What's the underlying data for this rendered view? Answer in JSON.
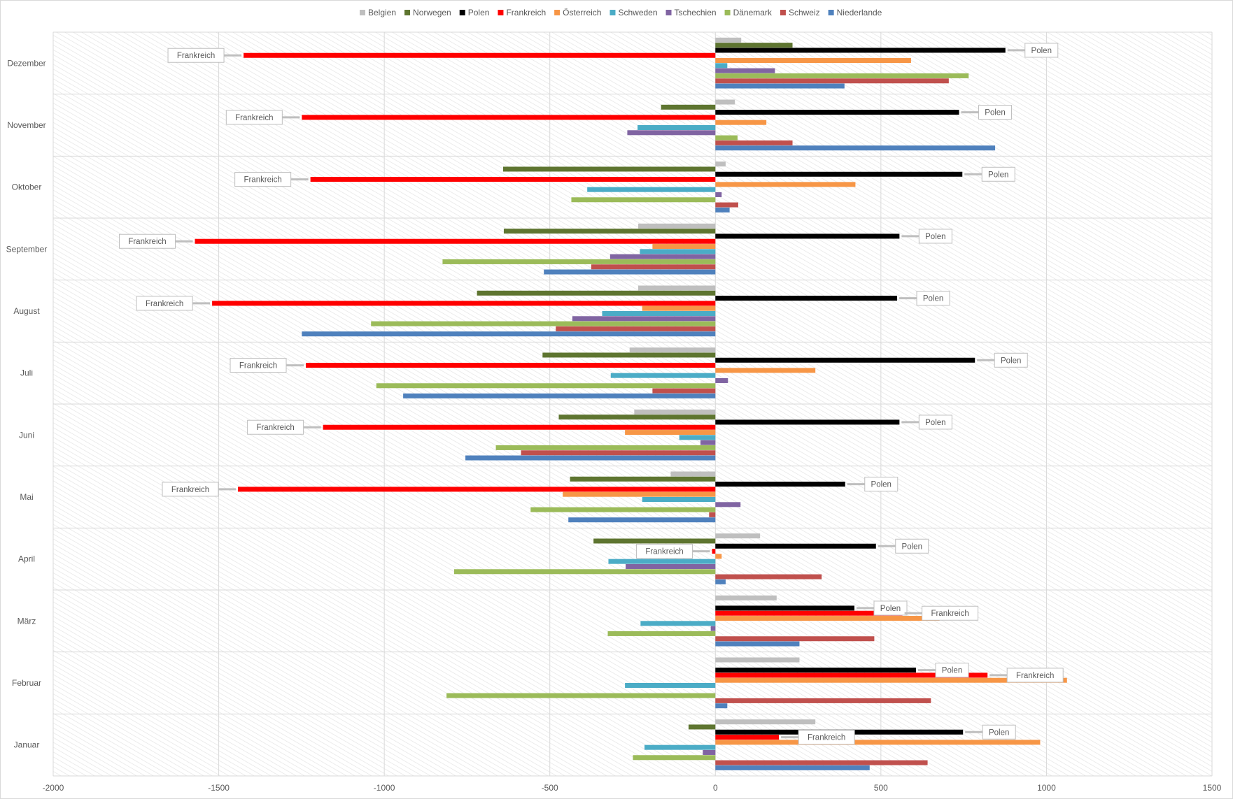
{
  "chart_data": {
    "type": "bar",
    "orientation": "horizontal",
    "title": "",
    "xlabel": "",
    "ylabel": "",
    "xlim": [
      -2000,
      1500
    ],
    "xticks": [
      -2000,
      -1500,
      -1000,
      -500,
      0,
      500,
      1000,
      1500
    ],
    "grid": true,
    "legend_position": "top",
    "categories": [
      "Dezember",
      "November",
      "Oktober",
      "September",
      "August",
      "Juli",
      "Juni",
      "Mai",
      "April",
      "März",
      "Februar",
      "Januar"
    ],
    "series": [
      {
        "name": "Belgien",
        "color": "#bfbfbf",
        "values": [
          78,
          59,
          31,
          -233,
          -233,
          -259,
          -245,
          -135,
          135,
          185,
          254,
          302
        ]
      },
      {
        "name": "Norwegen",
        "color": "#5e7530",
        "values": [
          233,
          -164,
          -641,
          -639,
          -720,
          -522,
          -473,
          -439,
          -368,
          0,
          0,
          -81
        ]
      },
      {
        "name": "Polen",
        "color": "#000000",
        "values": [
          876,
          736,
          746,
          556,
          549,
          784,
          556,
          392,
          485,
          420,
          606,
          748
        ]
      },
      {
        "name": "Frankreich",
        "color": "#ff0000",
        "values": [
          -1425,
          -1249,
          -1223,
          -1572,
          -1520,
          -1237,
          -1185,
          -1442,
          -10,
          565,
          822,
          192
        ]
      },
      {
        "name": "Österreich",
        "color": "#f79646",
        "values": [
          591,
          154,
          423,
          -190,
          -221,
          302,
          -273,
          -461,
          19,
          677,
          1062,
          981
        ]
      },
      {
        "name": "Schweden",
        "color": "#4bacc6",
        "values": [
          36,
          -235,
          -387,
          -228,
          -342,
          -316,
          -109,
          -221,
          -323,
          -226,
          -273,
          -214
        ]
      },
      {
        "name": "Tschechien",
        "color": "#8064a2",
        "values": [
          180,
          -266,
          19,
          -318,
          -432,
          38,
          -45,
          76,
          -271,
          -14,
          0,
          -38
        ]
      },
      {
        "name": "Dänemark",
        "color": "#9bbb59",
        "values": [
          765,
          67,
          -435,
          -824,
          -1040,
          -1024,
          -663,
          -558,
          -789,
          -325,
          -812,
          -249
        ]
      },
      {
        "name": "Schweiz",
        "color": "#c0504d",
        "values": [
          705,
          233,
          69,
          -375,
          -482,
          -190,
          -587,
          -19,
          321,
          480,
          651,
          641
        ]
      },
      {
        "name": "Niederlande",
        "color": "#4f81bd",
        "values": [
          390,
          845,
          43,
          -518,
          -1249,
          -943,
          -755,
          -444,
          31,
          254,
          36,
          466
        ]
      }
    ],
    "annotations": {
      "labeled_series": [
        "Polen",
        "Frankreich"
      ],
      "label_polen": "Polen",
      "label_frankreich": "Frankreich"
    }
  }
}
